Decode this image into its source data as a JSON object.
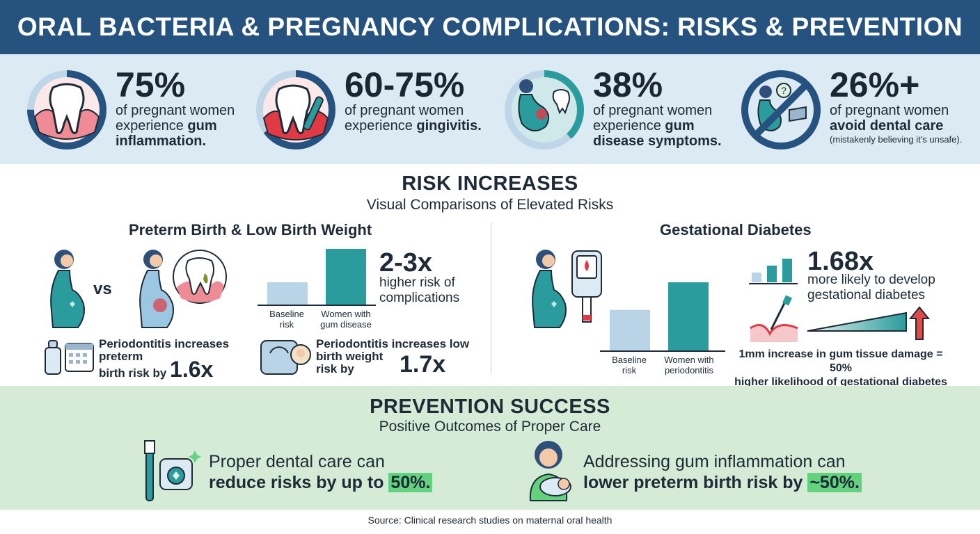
{
  "header": {
    "title": "ORAL BACTERIA & PREGNANCY COMPLICATIONS: RISKS & PREVENTION"
  },
  "colors": {
    "navy": "#26527f",
    "teal": "#2a9c9d",
    "light_blue": "#dceaf4",
    "light_green": "#d6ebd6",
    "highlight": "#63d27f",
    "alert_red": "#e04a4a"
  },
  "stats": [
    {
      "value": "75%",
      "line1": "of pregnant women",
      "line2_pre": "experience ",
      "line2_bold": "gum",
      "line3_bold": "inflammation.",
      "icon": "inflamed-tooth-icon",
      "fill_percent": 75
    },
    {
      "value": "60-75%",
      "line1": "of pregnant women",
      "line2_pre": "experience ",
      "line2_bold": "gingivitis.",
      "icon": "tooth-brushing-icon",
      "fill_percent": 65
    },
    {
      "value": "38%",
      "line1": "of pregnant women",
      "line2_pre": "experience ",
      "line2_bold": "gum",
      "line3_bold": "disease symptoms.",
      "icon": "pregnant-woman-tooth-icon",
      "fill_percent": 38
    },
    {
      "value": "26%+",
      "line1": "of pregnant women",
      "line2_bold": "avoid dental care",
      "line3": "(mistakenly believing it's unsafe).",
      "icon": "no-dental-care-icon"
    }
  ],
  "risk": {
    "title": "RISK INCREASES",
    "subtitle": "Visual Comparisons of Elevated Risks",
    "preterm": {
      "title": "Preterm Birth & Low Birth Weight",
      "vs": "vs",
      "bars": {
        "categories": [
          "Baseline risk",
          "Women with gum disease"
        ],
        "values": [
          1,
          2.5
        ]
      },
      "cat1_l1": "Baseline",
      "cat1_l2": "risk",
      "cat2_l1": "Women with",
      "cat2_l2": "gum disease",
      "multiplier": "2-3x",
      "multiplier_l1": "higher risk of",
      "multiplier_l2": "complications",
      "fact1_l1": "Periodontitis increases",
      "fact1_l2": "preterm",
      "fact1_l3": "birth risk by",
      "fact1_value": "1.6x",
      "fact2_l1": "Periodontitis increases low",
      "fact2_l2": "birth weight",
      "fact2_l3": "risk by",
      "fact2_value": "1.7x"
    },
    "diabetes": {
      "title": "Gestational Diabetes",
      "bars": {
        "categories": [
          "Baseline risk",
          "Women with periodontitis"
        ],
        "values": [
          1,
          1.68
        ]
      },
      "cat1_l1": "Baseline",
      "cat1_l2": "risk",
      "cat2_l1": "Women with",
      "cat2_l2": "periodontitis",
      "multiplier": "1.68x",
      "multiplier_l1": "more likely to develop",
      "multiplier_l2": "gestational diabetes",
      "fact_l1": "1mm increase in gum tissue damage = 50%",
      "fact_l2": "higher likelihood of gestational diabetes"
    }
  },
  "prevention": {
    "title": "PREVENTION SUCCESS",
    "subtitle": "Positive Outcomes of Proper Care",
    "item1_l1": "Proper dental care can",
    "item1_l2": "reduce risks by up to",
    "item1_hl": "50%.",
    "item2_l1": "Addressing gum inflammation can",
    "item2_l2": "lower preterm birth risk by",
    "item2_hl": "~50%."
  },
  "source": "Source: Clinical research studies on maternal oral health"
}
